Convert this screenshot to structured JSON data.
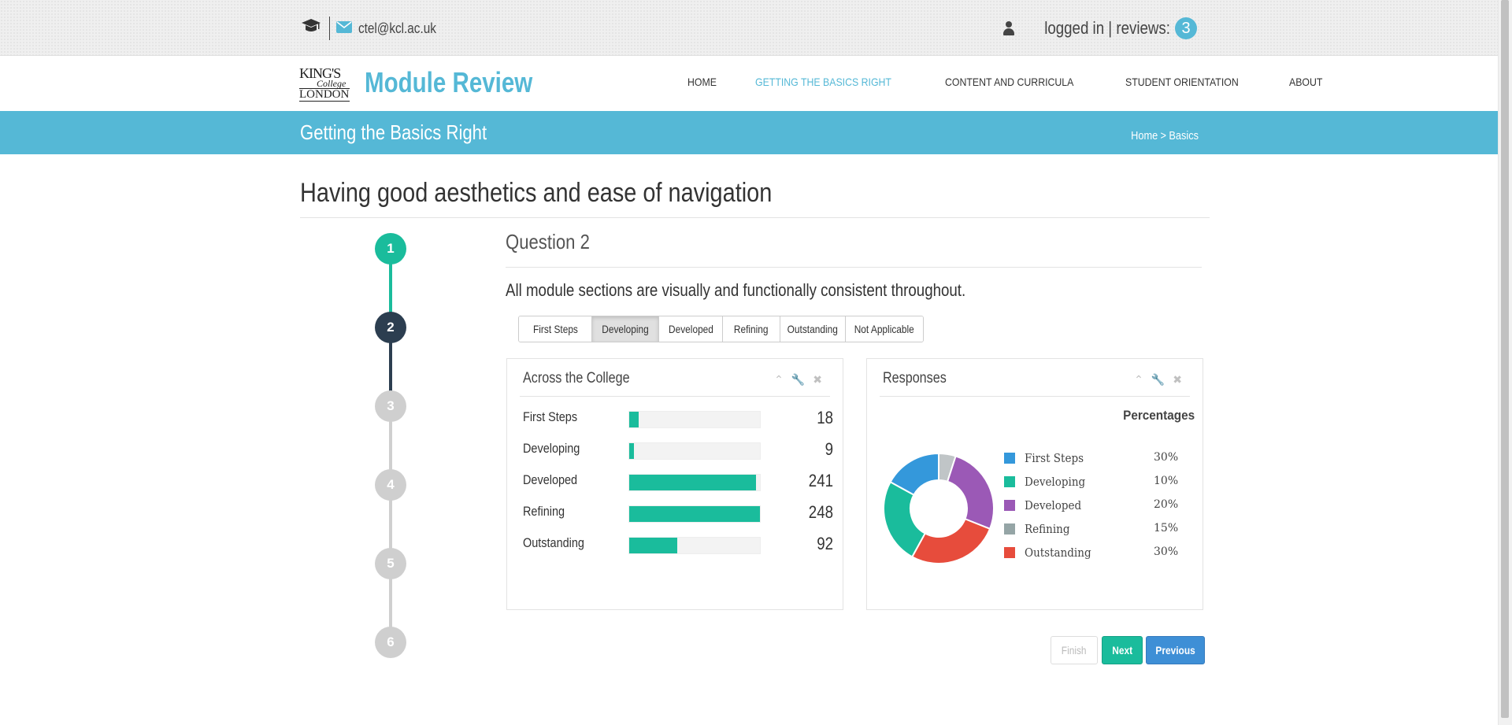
{
  "topbar": {
    "email": "ctel@kcl.ac.uk",
    "status": "logged in | reviews:",
    "reviews_count": "3"
  },
  "logo": {
    "line1": "KING'S",
    "line2": "College",
    "line3": "LONDON"
  },
  "brand": "Module Review",
  "nav": [
    "HOME",
    "GETTING THE BASICS RIGHT",
    "CONTENT AND CURRICULA",
    "STUDENT ORIENTATION",
    "ABOUT"
  ],
  "band": {
    "title": "Getting the Basics Right",
    "crumb_home": "Home",
    "crumb_sep": ">",
    "crumb_current": "Basics"
  },
  "page_heading": "Having good aesthetics and ease of navigation",
  "steps": [
    "1",
    "2",
    "3",
    "4",
    "5",
    "6"
  ],
  "question": {
    "title": "Question 2",
    "text": "All module sections are visually and functionally consistent throughout.",
    "options": [
      "First Steps",
      "Developing",
      "Developed",
      "Refining",
      "Outstanding",
      "Not Applicable"
    ],
    "selected": "Developing"
  },
  "college_panel": {
    "title": "Across the College",
    "rows": [
      {
        "label": "First Steps",
        "value": "18",
        "fill": 0.07
      },
      {
        "label": "Developing",
        "value": "9",
        "fill": 0.035
      },
      {
        "label": "Developed",
        "value": "241",
        "fill": 0.97
      },
      {
        "label": "Refining",
        "value": "248",
        "fill": 1.0
      },
      {
        "label": "Outstanding",
        "value": "92",
        "fill": 0.37
      }
    ]
  },
  "responses_panel": {
    "title": "Responses",
    "heading": "Percentages"
  },
  "chart_data": {
    "type": "pie",
    "categories": [
      "First Steps",
      "Developing",
      "Developed",
      "Refining",
      "Outstanding"
    ],
    "values": [
      30,
      10,
      20,
      15,
      30
    ],
    "labels": [
      "30%",
      "10%",
      "20%",
      "15%",
      "30%"
    ],
    "colors": [
      "#3498db",
      "#1abc9c",
      "#9b59b6",
      "#95a5a6",
      "#e74c3c"
    ],
    "donut_order": [
      "Refining",
      "Developed",
      "Outstanding",
      "Developing",
      "First Steps"
    ],
    "donut_fractions": [
      0.05,
      0.26,
      0.27,
      0.25,
      0.17
    ],
    "legend": "right"
  },
  "buttons": {
    "finish": "Finish",
    "next": "Next",
    "previous": "Previous"
  },
  "colors": {
    "accent": "#55b8d6",
    "teal": "#1abc9c",
    "dark": "#2c3e50",
    "inactive": "#cfcfcf",
    "previous": "#3e8fd6"
  }
}
